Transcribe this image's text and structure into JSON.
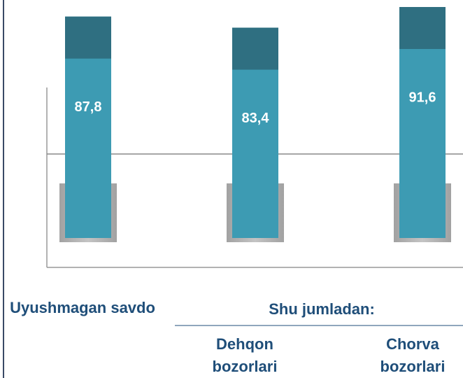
{
  "chart_data": {
    "type": "bar",
    "categories": [
      "Uyushmagan savdo",
      "Dehqon bozorlari",
      "Chorva bozorlari"
    ],
    "values": [
      87.8,
      83.4,
      91.6
    ],
    "value_labels": [
      "87,8",
      "83,4",
      "91,6"
    ],
    "group_label": "Shu jumladan:",
    "color": "#3d9bb3"
  }
}
